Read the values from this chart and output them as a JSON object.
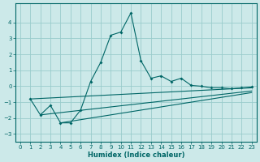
{
  "xlabel": "Humidex (Indice chaleur)",
  "background_color": "#cce9e9",
  "grid_color": "#99cccc",
  "line_color": "#006666",
  "xlim": [
    -0.5,
    23.5
  ],
  "ylim": [
    -3.5,
    5.2
  ],
  "xticks": [
    0,
    1,
    2,
    3,
    4,
    5,
    6,
    7,
    8,
    9,
    10,
    11,
    12,
    13,
    14,
    15,
    16,
    17,
    18,
    19,
    20,
    21,
    22,
    23
  ],
  "yticks": [
    -3,
    -2,
    -1,
    0,
    1,
    2,
    3,
    4
  ],
  "line1_x": [
    1,
    2,
    3,
    4,
    5,
    6,
    7,
    8,
    9,
    10,
    11,
    12,
    13,
    14,
    15,
    16,
    17,
    18,
    19,
    20,
    21,
    22,
    23
  ],
  "line1_y": [
    -0.8,
    -1.8,
    -1.2,
    -2.3,
    -2.3,
    -1.5,
    0.3,
    1.5,
    3.2,
    3.4,
    4.6,
    1.6,
    0.5,
    0.65,
    0.3,
    0.5,
    0.05,
    0.0,
    -0.1,
    -0.1,
    -0.15,
    -0.1,
    -0.05
  ],
  "line2_x": [
    1,
    23
  ],
  "line2_y": [
    -0.8,
    -0.1
  ],
  "line3_x": [
    2,
    23
  ],
  "line3_y": [
    -1.8,
    -0.3
  ],
  "line4_x": [
    4,
    23
  ],
  "line4_y": [
    -2.3,
    -0.4
  ],
  "tick_fontsize": 5,
  "xlabel_fontsize": 6
}
